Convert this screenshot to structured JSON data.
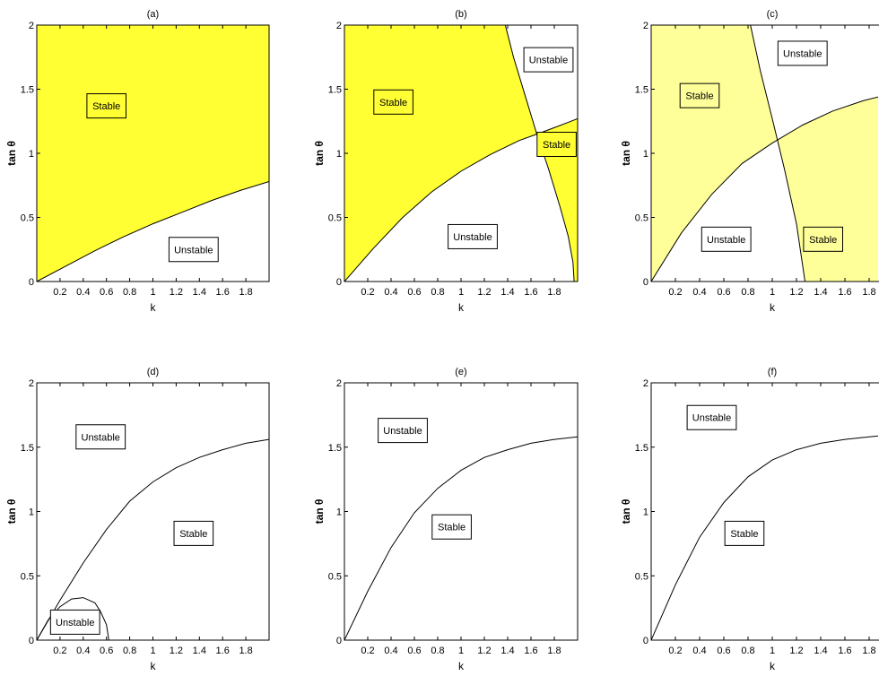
{
  "colors": {
    "stable_fill_bright": "#ffff33",
    "stable_fill_pale": "#ffff99",
    "unstable_fill": "#ffffff",
    "curve": "#000000",
    "frame": "#000000"
  },
  "chart_data": [
    {
      "type": "area",
      "title": "(a)",
      "xlabel": "k",
      "ylabel": "tan θ",
      "xlim": [
        0,
        2
      ],
      "ylim": [
        0,
        2
      ],
      "xticks": [
        "0.2",
        "0.4",
        "0.6",
        "0.8",
        "1",
        "1.2",
        "1.4",
        "1.6",
        "1.8"
      ],
      "yticks": [
        "0",
        "0.5",
        "1",
        "1.5",
        "2"
      ],
      "grid": false,
      "fill": "stable_fill_bright",
      "curves": [
        {
          "x": [
            0,
            0.25,
            0.5,
            0.75,
            1.0,
            1.25,
            1.5,
            1.75,
            2.0
          ],
          "y": [
            0,
            0.12,
            0.24,
            0.35,
            0.45,
            0.54,
            0.63,
            0.71,
            0.78
          ]
        }
      ],
      "regions": [
        {
          "label": "Stable",
          "x": 0.6,
          "y": 1.37,
          "filled": true
        },
        {
          "label": "Unstable",
          "x": 1.35,
          "y": 0.25,
          "filled": false
        }
      ]
    },
    {
      "type": "area",
      "title": "(b)",
      "xlabel": "k",
      "ylabel": "tan θ",
      "xlim": [
        0,
        2
      ],
      "ylim": [
        0,
        2
      ],
      "xticks": [
        "0.2",
        "0.4",
        "0.6",
        "0.8",
        "1",
        "1.2",
        "1.4",
        "1.6",
        "1.8"
      ],
      "yticks": [
        "0",
        "0.5",
        "1",
        "1.5",
        "2"
      ],
      "grid": false,
      "fill": "stable_fill_bright",
      "curves": [
        {
          "x": [
            0,
            0.25,
            0.5,
            0.75,
            1.0,
            1.25,
            1.5,
            1.65,
            1.8,
            2.0
          ],
          "y": [
            0,
            0.26,
            0.5,
            0.7,
            0.86,
            0.99,
            1.1,
            1.15,
            1.2,
            1.27
          ]
        },
        {
          "x": [
            1.38,
            1.45,
            1.55,
            1.65,
            1.75,
            1.85,
            1.92,
            1.96,
            1.97
          ],
          "y": [
            2.0,
            1.75,
            1.45,
            1.15,
            0.88,
            0.58,
            0.35,
            0.15,
            0
          ]
        }
      ],
      "regions": [
        {
          "label": "Stable",
          "x": 0.42,
          "y": 1.4,
          "filled": true
        },
        {
          "label": "Unstable",
          "x": 1.75,
          "y": 1.73,
          "filled": false
        },
        {
          "label": "Stable",
          "x": 1.82,
          "y": 1.07,
          "filled": true
        },
        {
          "label": "Unstable",
          "x": 1.1,
          "y": 0.35,
          "filled": false
        }
      ]
    },
    {
      "type": "area",
      "title": "(c)",
      "xlabel": "k",
      "ylabel": "tan θ",
      "xlim": [
        0,
        2
      ],
      "ylim": [
        0,
        2
      ],
      "xticks": [
        "0.2",
        "0.4",
        "0.6",
        "0.8",
        "1",
        "1.2",
        "1.4",
        "1.6",
        "1.8"
      ],
      "yticks": [
        "0",
        "0.5",
        "1",
        "1.5",
        "2"
      ],
      "grid": false,
      "fill": "stable_fill_pale",
      "curves": [
        {
          "x": [
            0,
            0.25,
            0.5,
            0.75,
            1.0,
            1.25,
            1.5,
            1.75,
            2.0
          ],
          "y": [
            0,
            0.38,
            0.68,
            0.92,
            1.08,
            1.22,
            1.33,
            1.41,
            1.47
          ]
        },
        {
          "x": [
            0.82,
            0.9,
            1.0,
            1.1,
            1.2,
            1.27
          ],
          "y": [
            2.0,
            1.65,
            1.27,
            0.88,
            0.45,
            0
          ]
        }
      ],
      "regions": [
        {
          "label": "Stable",
          "x": 0.4,
          "y": 1.45,
          "filled": true
        },
        {
          "label": "Unstable",
          "x": 1.25,
          "y": 1.78,
          "filled": false
        },
        {
          "label": "Unstable",
          "x": 0.62,
          "y": 0.33,
          "filled": false
        },
        {
          "label": "Stable",
          "x": 1.42,
          "y": 0.33,
          "filled": true
        }
      ]
    },
    {
      "type": "line",
      "title": "(d)",
      "xlabel": "k",
      "ylabel": "tan θ",
      "xlim": [
        0,
        2
      ],
      "ylim": [
        0,
        2
      ],
      "xticks": [
        "0.2",
        "0.4",
        "0.6",
        "0.8",
        "1",
        "1.2",
        "1.4",
        "1.6",
        "1.8"
      ],
      "yticks": [
        "0",
        "0.5",
        "1",
        "1.5",
        "2"
      ],
      "grid": false,
      "fill": "none",
      "curves": [
        {
          "x": [
            0,
            0.2,
            0.4,
            0.6,
            0.8,
            1.0,
            1.2,
            1.4,
            1.6,
            1.8,
            2.0
          ],
          "y": [
            0,
            0.31,
            0.6,
            0.86,
            1.08,
            1.23,
            1.34,
            1.42,
            1.48,
            1.53,
            1.56
          ]
        },
        {
          "x": [
            0,
            0.1,
            0.2,
            0.3,
            0.4,
            0.5,
            0.55,
            0.6,
            0.62
          ],
          "y": [
            0,
            0.16,
            0.26,
            0.32,
            0.33,
            0.29,
            0.22,
            0.12,
            0
          ]
        }
      ],
      "regions": [
        {
          "label": "Unstable",
          "x": 0.55,
          "y": 1.58,
          "filled": false
        },
        {
          "label": "Stable",
          "x": 1.35,
          "y": 0.83,
          "filled": false
        },
        {
          "label": "Unstable",
          "x": 0.33,
          "y": 0.14,
          "filled": false
        }
      ]
    },
    {
      "type": "line",
      "title": "(e)",
      "xlabel": "k",
      "ylabel": "tan θ",
      "xlim": [
        0,
        2
      ],
      "ylim": [
        0,
        2
      ],
      "xticks": [
        "0.2",
        "0.4",
        "0.6",
        "0.8",
        "1",
        "1.2",
        "1.4",
        "1.6",
        "1.8"
      ],
      "yticks": [
        "0",
        "0.5",
        "1",
        "1.5",
        "2"
      ],
      "grid": false,
      "fill": "none",
      "curves": [
        {
          "x": [
            0,
            0.2,
            0.4,
            0.6,
            0.8,
            1.0,
            1.2,
            1.4,
            1.6,
            1.8,
            2.0
          ],
          "y": [
            0,
            0.38,
            0.72,
            0.99,
            1.18,
            1.32,
            1.42,
            1.48,
            1.53,
            1.56,
            1.58
          ]
        }
      ],
      "regions": [
        {
          "label": "Unstable",
          "x": 0.5,
          "y": 1.63,
          "filled": false
        },
        {
          "label": "Stable",
          "x": 0.92,
          "y": 0.88,
          "filled": false
        }
      ]
    },
    {
      "type": "line",
      "title": "(f)",
      "xlabel": "k",
      "ylabel": "tan θ",
      "xlim": [
        0,
        2
      ],
      "ylim": [
        0,
        2
      ],
      "xticks": [
        "0.2",
        "0.4",
        "0.6",
        "0.8",
        "1",
        "1.2",
        "1.4",
        "1.6",
        "1.8"
      ],
      "yticks": [
        "0",
        "0.5",
        "1",
        "1.5",
        "2"
      ],
      "grid": false,
      "fill": "none",
      "curves": [
        {
          "x": [
            0,
            0.2,
            0.4,
            0.6,
            0.8,
            1.0,
            1.2,
            1.4,
            1.6,
            1.8,
            2.0
          ],
          "y": [
            0,
            0.43,
            0.8,
            1.07,
            1.27,
            1.4,
            1.48,
            1.53,
            1.56,
            1.58,
            1.6
          ]
        }
      ],
      "regions": [
        {
          "label": "Unstable",
          "x": 0.5,
          "y": 1.73,
          "filled": false
        },
        {
          "label": "Stable",
          "x": 0.77,
          "y": 0.83,
          "filled": false
        }
      ]
    }
  ]
}
